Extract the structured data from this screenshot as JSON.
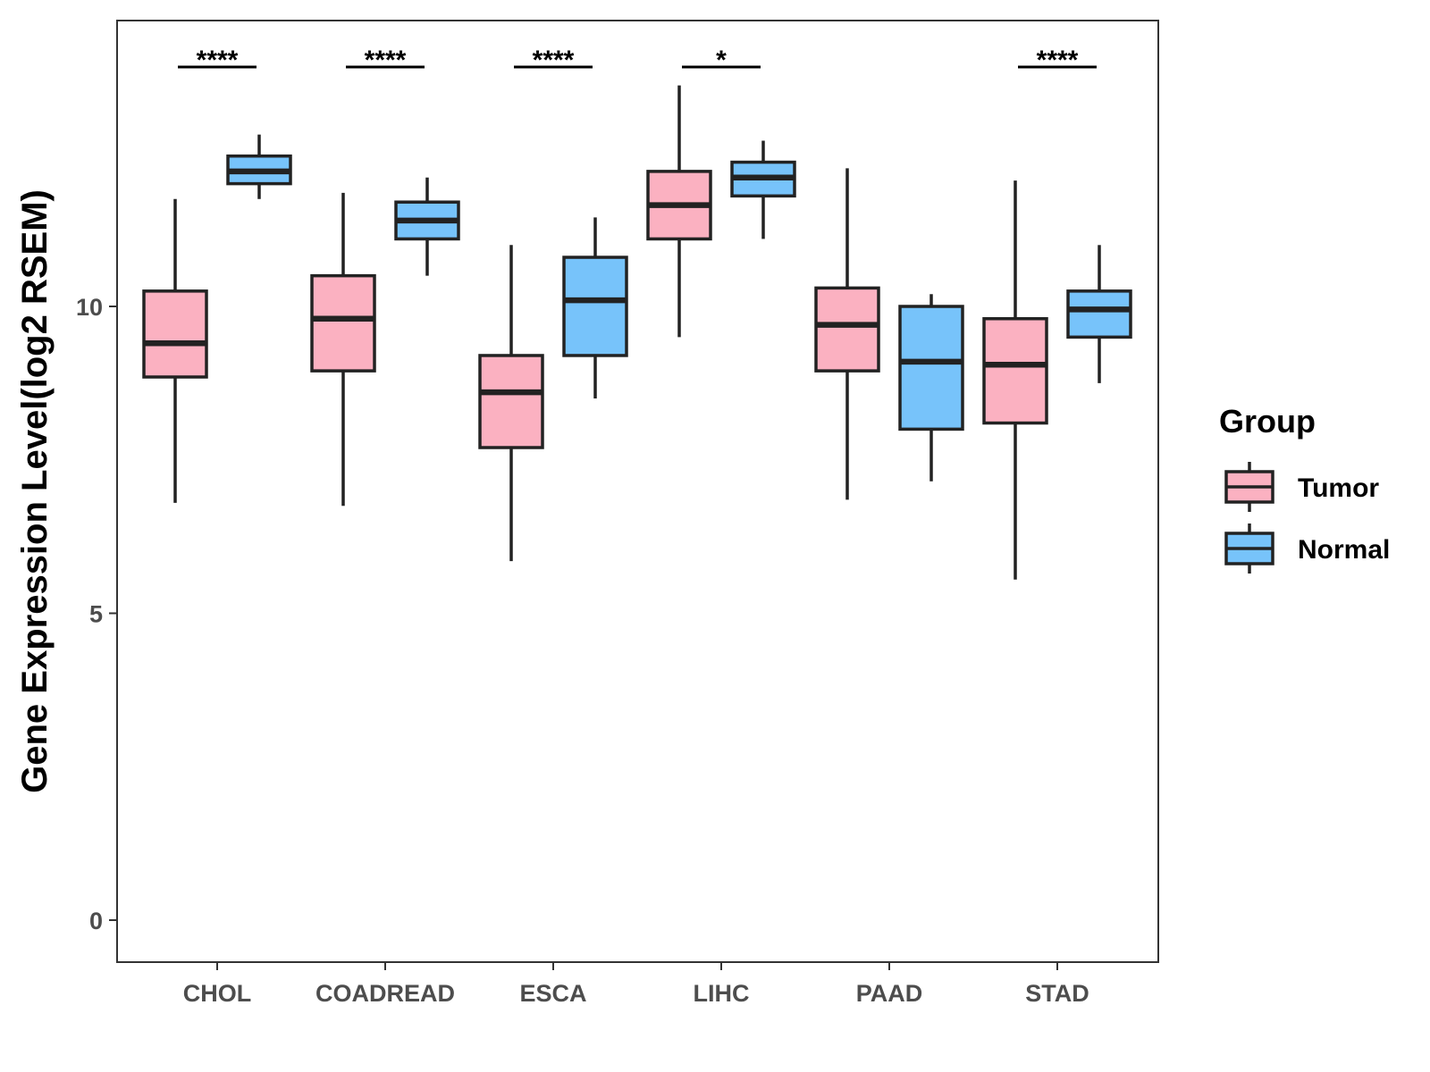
{
  "chart_data": {
    "type": "boxplot",
    "title": "",
    "xlabel": "",
    "ylabel": "Gene Expression Level(log2 RSEM)",
    "ylim": [
      -0.7,
      14.7
    ],
    "yticks": [
      0,
      5,
      10
    ],
    "grid": false,
    "categories": [
      "CHOL",
      "COADREAD",
      "ESCA",
      "LIHC",
      "PAAD",
      "STAD"
    ],
    "series": [
      {
        "name": "Tumor",
        "color": "#FBB1C1",
        "boxes": [
          {
            "whisker_low": 6.8,
            "q1": 8.85,
            "median": 9.4,
            "q3": 10.25,
            "whisker_high": 11.75
          },
          {
            "whisker_low": 6.75,
            "q1": 8.95,
            "median": 9.8,
            "q3": 10.5,
            "whisker_high": 11.85
          },
          {
            "whisker_low": 5.85,
            "q1": 7.7,
            "median": 8.6,
            "q3": 9.2,
            "whisker_high": 11.0
          },
          {
            "whisker_low": 9.5,
            "q1": 11.1,
            "median": 11.65,
            "q3": 12.2,
            "whisker_high": 13.6
          },
          {
            "whisker_low": 6.85,
            "q1": 8.95,
            "median": 9.7,
            "q3": 10.3,
            "whisker_high": 12.25
          },
          {
            "whisker_low": 5.55,
            "q1": 8.1,
            "median": 9.05,
            "q3": 9.8,
            "whisker_high": 12.05
          }
        ]
      },
      {
        "name": "Normal",
        "color": "#77C3FA",
        "boxes": [
          {
            "whisker_low": 11.75,
            "q1": 12.0,
            "median": 12.2,
            "q3": 12.45,
            "whisker_high": 12.8
          },
          {
            "whisker_low": 10.5,
            "q1": 11.1,
            "median": 11.4,
            "q3": 11.7,
            "whisker_high": 12.1
          },
          {
            "whisker_low": 8.5,
            "q1": 9.2,
            "median": 10.1,
            "q3": 10.8,
            "whisker_high": 11.45
          },
          {
            "whisker_low": 11.1,
            "q1": 11.8,
            "median": 12.1,
            "q3": 12.35,
            "whisker_high": 12.7
          },
          {
            "whisker_low": 7.15,
            "q1": 8.0,
            "median": 9.1,
            "q3": 10.0,
            "whisker_high": 10.2
          },
          {
            "whisker_low": 8.75,
            "q1": 9.5,
            "median": 9.95,
            "q3": 10.25,
            "whisker_high": 11.0
          }
        ]
      }
    ],
    "significance": [
      "****",
      "****",
      "****",
      "*",
      "",
      "****"
    ],
    "legend": {
      "title": "Group",
      "entries": [
        "Tumor",
        "Normal"
      ],
      "position": "right"
    }
  },
  "colors": {
    "tumor": "#FBB1C1",
    "normal": "#77C3FA",
    "outline": "#222222",
    "axis_text": "#4d4d4d"
  }
}
